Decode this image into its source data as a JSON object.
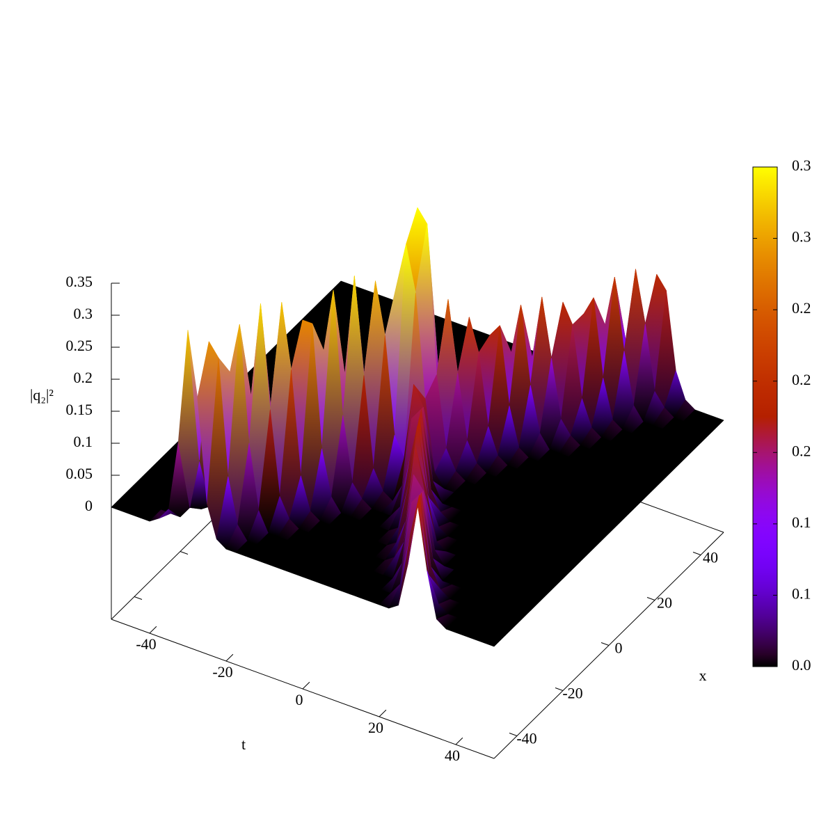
{
  "chart_data": {
    "type": "surface",
    "tlabel": "t",
    "xlabel": "x",
    "zlabel": "|q₂|²",
    "tlim": [
      -50,
      50
    ],
    "xlim": [
      -50,
      50
    ],
    "zlim": [
      0,
      0.35
    ],
    "ticslevel": 0.5,
    "tticks": [
      -40,
      -20,
      0,
      20,
      40
    ],
    "xticks": [
      -40,
      -20,
      0,
      20,
      40
    ],
    "zticks": [
      0,
      0.05,
      0.1,
      0.15,
      0.2,
      0.25,
      0.3,
      0.35
    ],
    "cblim": [
      0,
      0.35
    ],
    "cbticks": [
      {
        "value": 0,
        "label": "0.0"
      },
      {
        "value": 0.05,
        "label": "0.1"
      },
      {
        "value": 0.1,
        "label": "0.1"
      },
      {
        "value": 0.15,
        "label": "0.2"
      },
      {
        "value": 0.2,
        "label": "0.2"
      },
      {
        "value": 0.25,
        "label": "0.2"
      },
      {
        "value": 0.3,
        "label": "0.3"
      },
      {
        "value": 0.35,
        "label": "0.3"
      }
    ],
    "palette": "gnuplot",
    "t": [
      -50,
      -47.5,
      -45,
      -42.5,
      -40,
      -37.5,
      -35,
      -32.5,
      -30,
      -27.5,
      -25,
      -22.5,
      -20,
      -17.5,
      -15,
      -12.5,
      -10,
      -7.5,
      -5,
      -2.5,
      0,
      2.5,
      5,
      7.5,
      10,
      12.5,
      15,
      17.5,
      20,
      22.5,
      25,
      27.5,
      30,
      32.5,
      35,
      37.5,
      40,
      42.5,
      45,
      47.5,
      50
    ],
    "x": [
      -50,
      -45,
      -40,
      -35,
      -30,
      -25,
      -20,
      -15,
      -10,
      -5,
      0,
      5,
      10,
      15,
      20,
      25,
      30,
      35,
      40,
      45,
      50
    ],
    "z": [
      [
        0,
        0,
        0,
        0,
        0,
        0.01,
        0.03,
        0.14,
        0.32,
        0.22,
        0.06,
        0.01,
        0,
        0,
        0,
        0,
        0,
        0,
        0,
        0,
        0,
        0,
        0,
        0,
        0,
        0,
        0,
        0,
        0,
        0,
        0.01,
        0.08,
        0.18,
        0.08,
        0.01,
        0,
        0,
        0,
        0,
        0,
        0
      ],
      [
        0,
        0,
        0,
        0,
        0,
        0,
        0,
        0.02,
        0.1,
        0.29,
        0.27,
        0.09,
        0.02,
        0,
        0,
        0,
        0,
        0,
        0,
        0,
        0,
        0,
        0,
        0,
        0,
        0,
        0,
        0,
        0,
        0.02,
        0.1,
        0.17,
        0.05,
        0.01,
        0,
        0,
        0,
        0,
        0,
        0,
        0
      ],
      [
        0,
        0,
        0,
        0,
        0,
        0,
        0,
        0,
        0.01,
        0.07,
        0.23,
        0.31,
        0.13,
        0.03,
        0,
        0,
        0,
        0,
        0,
        0,
        0,
        0,
        0,
        0,
        0,
        0,
        0,
        0,
        0.03,
        0.13,
        0.15,
        0.04,
        0.01,
        0,
        0,
        0,
        0,
        0,
        0,
        0,
        0
      ],
      [
        0,
        0,
        0,
        0,
        0,
        0,
        0,
        0,
        0,
        0.01,
        0.04,
        0.18,
        0.33,
        0.17,
        0.04,
        0.01,
        0,
        0,
        0,
        0,
        0,
        0,
        0,
        0,
        0,
        0,
        0.01,
        0.04,
        0.15,
        0.13,
        0.03,
        0,
        0,
        0,
        0,
        0,
        0,
        0,
        0,
        0,
        0
      ],
      [
        0,
        0,
        0,
        0,
        0,
        0,
        0,
        0,
        0,
        0,
        0.01,
        0.03,
        0.13,
        0.32,
        0.22,
        0.06,
        0.01,
        0,
        0,
        0,
        0,
        0,
        0,
        0,
        0,
        0.01,
        0.05,
        0.17,
        0.1,
        0.02,
        0,
        0,
        0,
        0,
        0,
        0,
        0,
        0,
        0,
        0,
        0
      ],
      [
        0,
        0,
        0,
        0,
        0,
        0,
        0,
        0,
        0,
        0,
        0,
        0,
        0.02,
        0.09,
        0.28,
        0.28,
        0.09,
        0.02,
        0,
        0,
        0,
        0,
        0,
        0,
        0.01,
        0.08,
        0.18,
        0.08,
        0.01,
        0,
        0,
        0,
        0,
        0,
        0,
        0,
        0,
        0,
        0,
        0,
        0
      ],
      [
        0,
        0,
        0,
        0,
        0,
        0,
        0,
        0,
        0,
        0,
        0,
        0,
        0,
        0.01,
        0.06,
        0.22,
        0.32,
        0.13,
        0.03,
        0.01,
        0,
        0,
        0,
        0.02,
        0.1,
        0.17,
        0.05,
        0.01,
        0,
        0,
        0,
        0,
        0,
        0,
        0,
        0,
        0,
        0,
        0,
        0,
        0
      ],
      [
        0,
        0,
        0,
        0,
        0,
        0,
        0,
        0,
        0,
        0,
        0,
        0,
        0,
        0,
        0.01,
        0.04,
        0.17,
        0.33,
        0.18,
        0.04,
        0.01,
        0,
        0.03,
        0.14,
        0.16,
        0.04,
        0.01,
        0,
        0,
        0,
        0,
        0,
        0,
        0,
        0,
        0,
        0,
        0,
        0,
        0,
        0
      ],
      [
        0,
        0,
        0,
        0,
        0,
        0,
        0,
        0,
        0,
        0,
        0,
        0,
        0,
        0,
        0,
        0,
        0.03,
        0.13,
        0.31,
        0.23,
        0.08,
        0.05,
        0.17,
        0.14,
        0.03,
        0,
        0,
        0,
        0,
        0,
        0,
        0,
        0,
        0,
        0,
        0,
        0,
        0,
        0,
        0,
        0
      ],
      [
        0,
        0,
        0,
        0,
        0,
        0,
        0,
        0,
        0,
        0,
        0,
        0,
        0,
        0,
        0,
        0,
        0,
        0.02,
        0.09,
        0.29,
        0.36,
        0.29,
        0.13,
        0.02,
        0,
        0,
        0,
        0,
        0,
        0,
        0,
        0,
        0,
        0,
        0,
        0,
        0,
        0,
        0,
        0,
        0
      ],
      [
        0,
        0,
        0,
        0,
        0,
        0,
        0,
        0,
        0,
        0,
        0,
        0,
        0,
        0,
        0,
        0,
        0,
        0,
        0.04,
        0.22,
        0.4,
        0.38,
        0.15,
        0.04,
        0.01,
        0,
        0,
        0,
        0,
        0,
        0,
        0,
        0,
        0,
        0,
        0,
        0,
        0,
        0,
        0,
        0
      ],
      [
        0,
        0,
        0,
        0,
        0,
        0,
        0,
        0,
        0,
        0,
        0,
        0,
        0,
        0,
        0,
        0,
        0,
        0,
        0.03,
        0.05,
        0.05,
        0.13,
        0.25,
        0.14,
        0.04,
        0.01,
        0,
        0,
        0,
        0,
        0,
        0,
        0,
        0,
        0,
        0,
        0,
        0,
        0,
        0,
        0
      ],
      [
        0,
        0,
        0,
        0,
        0,
        0,
        0,
        0,
        0,
        0,
        0,
        0,
        0,
        0,
        0,
        0,
        0.01,
        0.02,
        0.01,
        0,
        0,
        0.02,
        0.08,
        0.21,
        0.16,
        0.05,
        0.01,
        0,
        0,
        0,
        0,
        0,
        0,
        0,
        0,
        0,
        0,
        0,
        0,
        0,
        0
      ],
      [
        0,
        0,
        0,
        0,
        0,
        0,
        0,
        0,
        0,
        0,
        0,
        0,
        0,
        0,
        0,
        0,
        0,
        0,
        0,
        0,
        0,
        0,
        0.01,
        0.05,
        0.17,
        0.19,
        0.07,
        0.01,
        0,
        0,
        0,
        0,
        0,
        0,
        0,
        0,
        0,
        0,
        0,
        0,
        0
      ],
      [
        0,
        0,
        0,
        0,
        0,
        0,
        0,
        0,
        0,
        0,
        0,
        0,
        0,
        0,
        0,
        0,
        0,
        0,
        0,
        0,
        0,
        0,
        0,
        0.01,
        0.04,
        0.13,
        0.21,
        0.09,
        0.02,
        0,
        0,
        0,
        0,
        0,
        0,
        0,
        0,
        0,
        0,
        0,
        0
      ],
      [
        0,
        0,
        0,
        0,
        0,
        0,
        0,
        0,
        0,
        0,
        0,
        0,
        0,
        0,
        0,
        0,
        0,
        0,
        0,
        0,
        0,
        0,
        0,
        0,
        0,
        0.03,
        0.11,
        0.21,
        0.12,
        0.03,
        0.01,
        0,
        0,
        0,
        0,
        0,
        0,
        0,
        0,
        0,
        0
      ],
      [
        0,
        0,
        0,
        0,
        0,
        0,
        0,
        0,
        0,
        0,
        0,
        0,
        0,
        0,
        0,
        0,
        0,
        0,
        0,
        0,
        0,
        0,
        0,
        0,
        0,
        0,
        0.01,
        0.07,
        0.19,
        0.16,
        0.05,
        0.01,
        0,
        0,
        0,
        0,
        0,
        0,
        0,
        0,
        0
      ],
      [
        0,
        0,
        0,
        0,
        0,
        0,
        0,
        0,
        0,
        0,
        0,
        0,
        0,
        0,
        0,
        0,
        0,
        0,
        0,
        0,
        0,
        0,
        0,
        0,
        0,
        0,
        0,
        0.01,
        0.05,
        0.16,
        0.19,
        0.07,
        0.01,
        0,
        0,
        0,
        0,
        0,
        0,
        0,
        0
      ],
      [
        0,
        0,
        0,
        0,
        0,
        0,
        0,
        0,
        0,
        0,
        0,
        0,
        0,
        0,
        0,
        0,
        0,
        0,
        0,
        0,
        0,
        0,
        0,
        0,
        0,
        0,
        0,
        0,
        0.01,
        0.03,
        0.13,
        0.21,
        0.1,
        0.02,
        0,
        0,
        0,
        0,
        0,
        0,
        0
      ],
      [
        0,
        0,
        0,
        0,
        0,
        0,
        0,
        0,
        0,
        0,
        0,
        0,
        0,
        0,
        0,
        0,
        0,
        0,
        0,
        0,
        0,
        0,
        0,
        0,
        0,
        0,
        0,
        0,
        0,
        0,
        0.02,
        0.09,
        0.21,
        0.13,
        0.03,
        0.01,
        0,
        0,
        0,
        0,
        0
      ],
      [
        0,
        0,
        0,
        0,
        0,
        0,
        0,
        0,
        0,
        0,
        0,
        0,
        0,
        0,
        0,
        0,
        0,
        0,
        0,
        0,
        0,
        0,
        0,
        0,
        0,
        0,
        0,
        0,
        0,
        0,
        0,
        0.01,
        0.07,
        0.19,
        0.17,
        0.05,
        0.01,
        0,
        0,
        0,
        0
      ]
    ]
  }
}
